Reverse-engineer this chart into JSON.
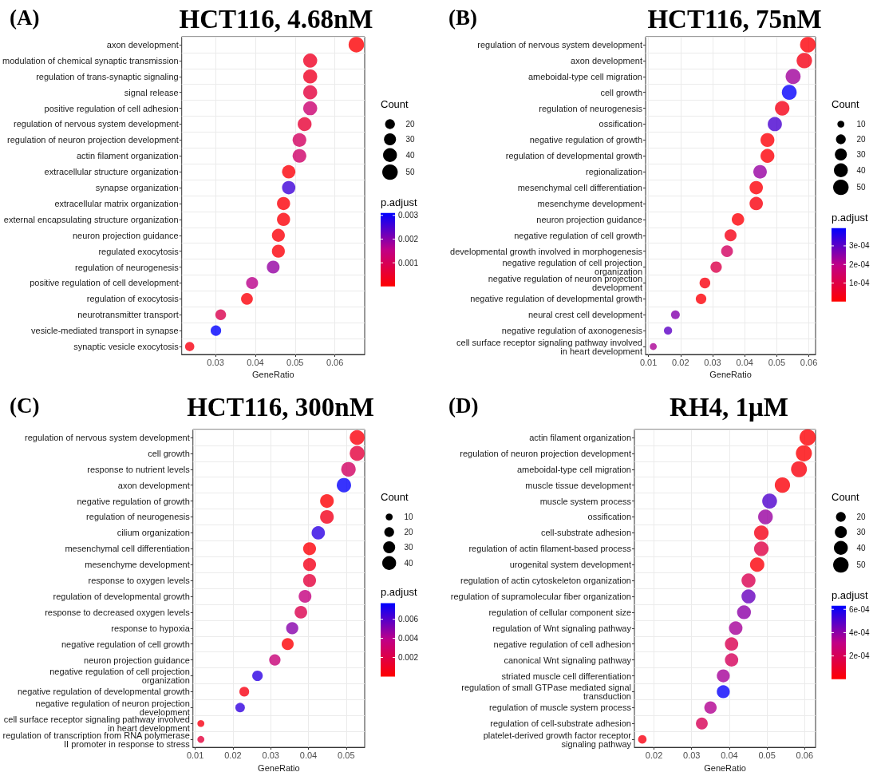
{
  "chart_data": [
    {
      "type": "bubble",
      "title": "HCT116, 4.68nM",
      "annotations": [
        "(A)"
      ],
      "xlabel": "GeneRatio",
      "orientation": "horizontal",
      "marker": "circle",
      "grid": true,
      "legend_title": "Count",
      "clabel": "p.adjust",
      "categories": [
        "axon development",
        "modulation of chemical synaptic transmission",
        "regulation of trans-synaptic signaling",
        "signal release",
        "positive regulation of cell adhesion",
        "regulation of nervous system development",
        "regulation of neuron projection development",
        "actin filament organization",
        "extracellular structure organization",
        "synapse organization",
        "extracellular matrix organization",
        "external encapsulating structure organization",
        "neuron projection guidance",
        "regulated exocytosis",
        "regulation of neurogenesis",
        "positive regulation of cell development",
        "regulation of exocytosis",
        "neurotransmitter transport",
        "vesicle-mediated transport in synapse",
        "synaptic vesicle exocytosis"
      ],
      "values": [
        0.0654,
        0.0538,
        0.0538,
        0.0538,
        0.0538,
        0.0524,
        0.0511,
        0.0511,
        0.0484,
        0.0484,
        0.0471,
        0.0471,
        0.0458,
        0.0458,
        0.0445,
        0.0392,
        0.0379,
        0.0313,
        0.0301,
        0.0235
      ],
      "sizes": [
        50,
        41,
        41,
        41,
        41,
        40,
        39,
        39,
        37,
        37,
        36,
        36,
        35,
        35,
        34,
        30,
        29,
        24,
        23,
        18
      ],
      "cvalues": [
        5e-05,
        0.0004,
        0.0004,
        0.0007,
        0.0013,
        0.0006,
        0.0011,
        0.0012,
        0.0001,
        0.0026,
        0.0001,
        0.0001,
        0.0001,
        0.0001,
        0.0019,
        0.0016,
        0.0001,
        0.0009,
        0.0031,
        0.0002
      ],
      "size_legend": [
        20,
        30,
        40,
        50
      ],
      "clim": [
        0,
        0.0031
      ],
      "cticks": [
        0.001,
        0.002,
        0.003
      ],
      "xlim": [
        0.0215,
        0.0675
      ],
      "xticks": [
        0.03,
        0.04,
        0.05,
        0.06
      ]
    },
    {
      "type": "bubble",
      "title": "HCT116, 75nM",
      "annotations": [
        "(B)"
      ],
      "xlabel": "GeneRatio",
      "orientation": "horizontal",
      "marker": "circle",
      "grid": true,
      "legend_title": "Count",
      "clabel": "p.adjust",
      "categories": [
        "regulation of nervous system development",
        "axon development",
        "ameboidal-type cell migration",
        "cell growth",
        "regulation of neurogenesis",
        "ossification",
        "negative regulation of growth",
        "regulation of developmental growth",
        "regionalization",
        "mesenchymal cell differentiation",
        "mesenchyme development",
        "neuron projection guidance",
        "negative regulation of cell growth",
        "developmental growth involved in morphogenesis",
        "negative regulation of cell projection\norganization",
        "negative regulation of neuron projection\ndevelopment",
        "negative regulation of developmental growth",
        "neural crest cell development",
        "negative regulation of axonogenesis",
        "cell surface receptor signaling pathway involved\nin heart development"
      ],
      "values": [
        0.0597,
        0.0586,
        0.0551,
        0.0539,
        0.0517,
        0.0494,
        0.0471,
        0.0471,
        0.0448,
        0.0436,
        0.0436,
        0.0379,
        0.0356,
        0.0345,
        0.0311,
        0.0276,
        0.0264,
        0.0184,
        0.0161,
        0.0115
      ],
      "sizes": [
        51,
        50,
        47,
        46,
        44,
        42,
        40,
        40,
        38,
        37,
        37,
        32,
        30,
        29,
        27,
        24,
        23,
        16,
        14,
        10
      ],
      "cvalues": [
        1e-05,
        3e-05,
        0.00023,
        0.00039,
        3e-05,
        0.00032,
        1e-05,
        1e-05,
        0.00024,
        1e-05,
        2e-05,
        1e-05,
        3e-05,
        0.00014,
        0.00011,
        2e-05,
        1e-05,
        0.00026,
        0.0003,
        0.00022
      ],
      "size_legend": [
        10,
        20,
        30,
        40,
        50
      ],
      "clim": [
        0,
        0.000395
      ],
      "cticks": [
        {
          "value": 0.0001,
          "label": "1e-04"
        },
        {
          "value": 0.0002,
          "label": "2e-04"
        },
        {
          "value": 0.0003,
          "label": "3e-04"
        }
      ],
      "xlim": [
        0.0091,
        0.0621
      ],
      "xticks": [
        0.01,
        0.02,
        0.03,
        0.04,
        0.05,
        0.06
      ]
    },
    {
      "type": "bubble",
      "title": "HCT116, 300nM",
      "annotations": [
        "(C)"
      ],
      "xlabel": "GeneRatio",
      "orientation": "horizontal",
      "marker": "circle",
      "grid": true,
      "legend_title": "Count",
      "clabel": "p.adjust",
      "categories": [
        "regulation of nervous system development",
        "cell growth",
        "response to nutrient levels",
        "axon development",
        "negative regulation of growth",
        "regulation of neurogenesis",
        "cilium organization",
        "mesenchymal cell differentiation",
        "mesenchyme development",
        "response to oxygen levels",
        "regulation of developmental growth",
        "response to decreased oxygen levels",
        "response to hypoxia",
        "negative regulation of cell growth",
        "neuron projection guidance",
        "negative regulation of cell projection\norganization",
        "negative regulation of developmental growth",
        "negative regulation of neuron projection\ndevelopment",
        "cell surface receptor signaling pathway involved\nin heart development",
        "regulation of transcription from RNA polymerase\nII promoter in response to stress"
      ],
      "values": [
        0.0529,
        0.0529,
        0.0506,
        0.0494,
        0.0449,
        0.0449,
        0.0426,
        0.0403,
        0.0403,
        0.0403,
        0.0391,
        0.038,
        0.0357,
        0.0345,
        0.0311,
        0.0265,
        0.023,
        0.0219,
        0.0115,
        0.0115
      ],
      "sizes": [
        46,
        46,
        44,
        43,
        39,
        39,
        37,
        35,
        35,
        35,
        34,
        33,
        31,
        30,
        27,
        23,
        20,
        19,
        10,
        10
      ],
      "cvalues": [
        0.0003,
        0.0017,
        0.0028,
        0.0076,
        0.0001,
        0.0008,
        0.0068,
        0.0002,
        0.0007,
        0.0017,
        0.0036,
        0.0022,
        0.005,
        0.0001,
        0.0034,
        0.0068,
        0.0005,
        0.0067,
        0.0005,
        0.0017
      ],
      "size_legend": [
        10,
        20,
        30,
        40
      ],
      "clim": [
        0,
        0.0077
      ],
      "cticks": [
        0.002,
        0.004,
        0.006
      ],
      "xlim": [
        0.0094,
        0.0549
      ],
      "xticks": [
        0.01,
        0.02,
        0.03,
        0.04,
        0.05
      ]
    },
    {
      "type": "bubble",
      "title": "RH4, 1μM",
      "annotations": [
        "(D)"
      ],
      "xlabel": "GeneRatio",
      "orientation": "horizontal",
      "marker": "circle",
      "grid": true,
      "legend_title": "Count",
      "clabel": "p.adjust",
      "categories": [
        "actin filament organization",
        "regulation of neuron projection development",
        "ameboidal-type cell migration",
        "muscle tissue development",
        "muscle system process",
        "ossification",
        "cell-substrate adhesion",
        "regulation of actin filament-based process",
        "urogenital system development",
        "regulation of actin cytoskeleton organization",
        "regulation of supramolecular fiber organization",
        "regulation of cellular component size",
        "regulation of Wnt signaling pathway",
        "negative regulation of cell adhesion",
        "canonical Wnt signaling pathway",
        "striated muscle cell differentiation",
        "regulation of small GTPase mediated signal\ntransduction",
        "regulation of muscle system process",
        "regulation of cell-substrate adhesion",
        "platelet-derived growth factor receptor\nsignaling pathway"
      ],
      "values": [
        0.0608,
        0.0598,
        0.0585,
        0.0541,
        0.0507,
        0.0496,
        0.0485,
        0.0485,
        0.0474,
        0.0451,
        0.0451,
        0.0439,
        0.0417,
        0.0406,
        0.0406,
        0.0384,
        0.0384,
        0.035,
        0.0327,
        0.0169
      ],
      "sizes": [
        55,
        54,
        53,
        49,
        46,
        45,
        44,
        44,
        43,
        41,
        41,
        40,
        38,
        37,
        37,
        35,
        35,
        32,
        29,
        15
      ],
      "cvalues": [
        1e-05,
        1e-05,
        3e-05,
        2e-05,
        0.0005,
        0.00038,
        5e-05,
        0.00016,
        2e-05,
        0.00019,
        0.00046,
        0.0004,
        0.00036,
        0.00019,
        0.00021,
        0.00036,
        0.00062,
        0.00034,
        0.0002,
        4e-05
      ],
      "size_legend": [
        20,
        30,
        40,
        50
      ],
      "clim": [
        0,
        0.00063
      ],
      "cticks": [
        {
          "value": 0.0002,
          "label": "2e-04"
        },
        {
          "value": 0.0004,
          "label": "4e-04"
        },
        {
          "value": 0.0006,
          "label": "6e-04"
        }
      ],
      "xlim": [
        0.0148,
        0.0629
      ],
      "xticks": [
        0.02,
        0.03,
        0.04,
        0.05,
        0.06
      ]
    }
  ]
}
